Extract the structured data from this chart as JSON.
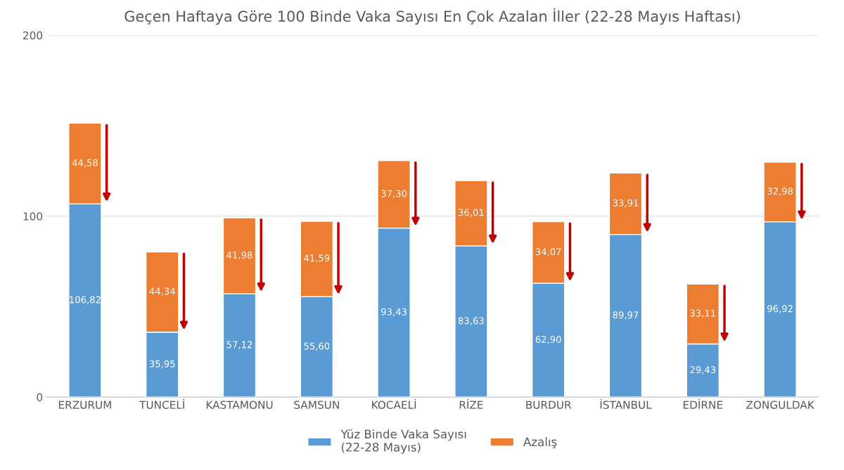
{
  "chart_data": {
    "type": "bar",
    "title": "Geçen Haftaya Göre 100 Binde Vaka Sayısı En Çok Azalan İller (22-28 Mayıs Haftası)",
    "categories": [
      "ERZURUM",
      "TUNCELİ",
      "KASTAMONU",
      "SAMSUN",
      "KOCAELİ",
      "RİZE",
      "BURDUR",
      "İSTANBUL",
      "EDİRNE",
      "ZONGULDAK"
    ],
    "stacked": true,
    "series": [
      {
        "name": "Yüz Binde Vaka Sayısı\n(22-28 Mayıs)",
        "color": "#5b9bd5",
        "values": [
          106.82,
          35.95,
          57.12,
          55.6,
          93.43,
          83.63,
          62.9,
          89.97,
          29.43,
          96.92
        ],
        "value_labels": [
          "106,82",
          "35,95",
          "57,12",
          "55,60",
          "93,43",
          "83,63",
          "62,90",
          "89,97",
          "29,43",
          "96,92"
        ]
      },
      {
        "name": "Azalış",
        "color": "#ed7d31",
        "values": [
          44.58,
          44.34,
          41.98,
          41.59,
          37.3,
          36.01,
          34.07,
          33.91,
          33.11,
          32.98
        ],
        "value_labels": [
          "44,58",
          "44,34",
          "41,98",
          "41,59",
          "37,30",
          "36,01",
          "34,07",
          "33,91",
          "33,11",
          "32,98"
        ]
      }
    ],
    "ylim": [
      0,
      200
    ],
    "yticks": [
      0,
      100,
      200
    ],
    "grid": "y",
    "legend": "bottom"
  }
}
